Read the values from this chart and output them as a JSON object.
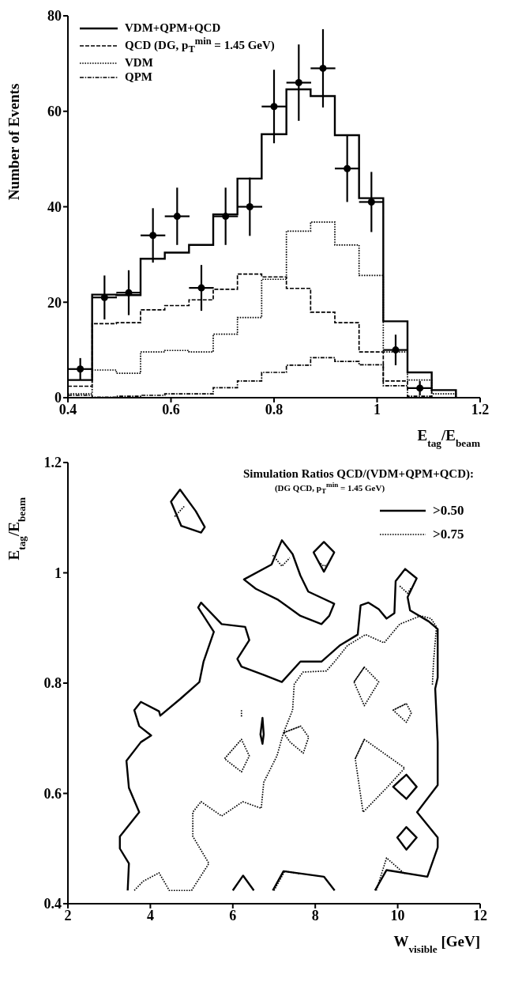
{
  "chart_data": [
    {
      "type": "step",
      "xlabel": "E$_{tag}$/E$_{beam}$",
      "ylabel": "Number of Events",
      "xlim": [
        0.4,
        1.2
      ],
      "xticks": [
        0.4,
        0.6,
        0.8,
        1,
        1.2
      ],
      "ylim": [
        0,
        80
      ],
      "yticks": [
        0,
        20,
        40,
        60,
        80
      ],
      "legend": "top left",
      "x": [
        0.4,
        0.447,
        0.494,
        0.541,
        0.588,
        0.635,
        0.682,
        0.729,
        0.776,
        0.824,
        0.871,
        0.918,
        0.965,
        1.012,
        1.059,
        1.106,
        1.153
      ],
      "series": [
        {
          "name": "VDM+QPM+QCD",
          "color": "#000000",
          "line_style": "solid",
          "values": [
            3.7,
            21.6,
            21.5,
            29.1,
            30.4,
            32,
            38.4,
            45.9,
            55.2,
            64.6,
            63.2,
            55.0,
            41.8,
            16,
            5.3,
            1.6,
            0
          ]
        },
        {
          "name": "QCD (DG, p$_{T}$$^{min}$ = 1.45 GeV)",
          "color": "#000000",
          "line_style": "dashed",
          "values": [
            2.4,
            15.5,
            15.7,
            18.4,
            19.3,
            20.5,
            22.7,
            25.9,
            25.3,
            22.9,
            17.9,
            15.7,
            9.6,
            3.5,
            2,
            0,
            0
          ]
        },
        {
          "name": "VDM",
          "color": "#000000",
          "line_style": "dotted",
          "values": [
            0.8,
            5.8,
            5.1,
            9.6,
            9.9,
            9.6,
            13.3,
            16.8,
            24.8,
            34.9,
            36.8,
            32,
            25.6,
            9.6,
            3.7,
            0.8,
            0
          ]
        },
        {
          "name": "QPM",
          "color": "#000000",
          "line_style": "dashdot",
          "values": [
            0.5,
            0.1,
            0.3,
            0.5,
            0.8,
            0.8,
            2.1,
            3.5,
            5.3,
            6.8,
            8.4,
            7.6,
            6.9,
            2.5,
            0.3,
            0,
            0
          ]
        },
        {
          "type": "scatter",
          "color": "#000000",
          "marker": "circle",
          "x": [
            0.424,
            0.471,
            0.518,
            0.565,
            0.612,
            0.659,
            0.706,
            0.753,
            0.8,
            0.848,
            0.895,
            0.942,
            0.989,
            1.036,
            1.083
          ],
          "values": [
            6,
            21,
            22,
            34,
            38,
            23,
            38,
            40,
            61,
            66,
            69,
            48,
            41,
            10,
            2
          ],
          "errors": [
            2.3,
            4.6,
            4.7,
            5.7,
            6,
            4.8,
            6,
            6.1,
            7.7,
            8,
            8.2,
            7,
            6.3,
            3.2,
            1.5
          ],
          "xerrors": [
            0.024,
            0.024,
            0.024,
            0.024,
            0.024,
            0.024,
            0.024,
            0.024,
            0.024,
            0.024,
            0.024,
            0.024,
            0.024,
            0.024,
            0.024
          ]
        }
      ]
    },
    {
      "type": "line",
      "xlabel": "W$_{visible}$ [GeV]",
      "ylabel": "E$_{tag}$/E$_{beam}$",
      "xlim": [
        2,
        12
      ],
      "xticks": [
        2,
        4,
        6,
        8,
        10,
        12
      ],
      "ylim": [
        0.4,
        1.2
      ],
      "yticks": [
        0.4,
        0.6,
        0.8,
        1,
        1.2
      ],
      "legend": "top right",
      "marker": "none",
      "legend_title": "Simulation Ratios QCD/(VDM+QPM+QCD):",
      "annotations": [
        "(DG QCD, p$_{T}$$^{min}$ = 1.45 GeV)"
      ],
      "series": [
        {
          "name": ">0.50",
          "color": "#000000",
          "line_style": "solid",
          "x": [
            3.45,
            3.48,
            3.26,
            3.26,
            3.73,
            3.48,
            3.42,
            3.77,
            4.02,
            3.73,
            3.61,
            3.77,
            4.21,
            4.24,
            4.72,
            5.19,
            5.29,
            5.54,
            5.16,
            5.23,
            5.73,
            6.3,
            6.4,
            6.11,
            6.21,
            6.75,
            7.19,
            7.64,
            8.15,
            8.59,
            9.03,
            9.1,
            9.29,
            9.54,
            9.73,
            9.92,
            9.95,
            10.18,
            10.46,
            10.24,
            10.3,
            10.75,
            10.97,
            10.97,
            10.91,
            10.97,
            10.97,
            10.47,
            10.97,
            10.97,
            10.72,
            9.73,
            9.45
          ],
          "values": [
            0.424,
            0.473,
            0.5,
            0.522,
            0.566,
            0.61,
            0.659,
            0.693,
            0.705,
            0.722,
            0.751,
            0.766,
            0.749,
            0.741,
            0.771,
            0.802,
            0.839,
            0.893,
            0.937,
            0.946,
            0.907,
            0.902,
            0.878,
            0.844,
            0.83,
            0.815,
            0.802,
            0.839,
            0.839,
            0.868,
            0.888,
            0.941,
            0.946,
            0.934,
            0.917,
            0.927,
            0.985,
            1.007,
            0.99,
            0.956,
            0.932,
            0.912,
            0.898,
            0.81,
            0.79,
            0.693,
            0.615,
            0.566,
            0.52,
            0.502,
            0.449,
            0.461,
            0.424
          ]
        },
        {
          "color": "#000000",
          "line_style": "solid",
          "x": [
            6.0,
            6.25,
            6.51
          ],
          "values": [
            0.424,
            0.451,
            0.424
          ]
        },
        {
          "color": "#000000",
          "line_style": "solid",
          "x": [
            6.97,
            7.23,
            8.21,
            8.47
          ],
          "values": [
            0.424,
            0.459,
            0.449,
            0.424
          ]
        },
        {
          "color": "#000000",
          "line_style": "solid",
          "x": [
            9.99,
            10.21,
            10.46,
            10.21,
            9.99,
            10.21
          ],
          "values": [
            0.52,
            0.539,
            0.52,
            0.498,
            0.52,
            0.539
          ]
        },
        {
          "color": "#000000",
          "line_style": "solid",
          "x": [
            9.89,
            10.21,
            10.46,
            10.21,
            9.89,
            10.21
          ],
          "values": [
            0.612,
            0.634,
            0.612,
            0.59,
            0.612,
            0.634
          ]
        },
        {
          "color": "#000000",
          "line_style": "solid",
          "x": [
            6.72,
            6.75,
            6.72,
            6.67,
            6.72,
            6.75
          ],
          "values": [
            0.737,
            0.707,
            0.69,
            0.707,
            0.737,
            0.707
          ]
        },
        {
          "color": "#000000",
          "line_style": "solid",
          "x": [
            4.72,
            5.1,
            5.32,
            5.23,
            4.75,
            4.5,
            4.72,
            5.1
          ],
          "values": [
            1.151,
            1.112,
            1.083,
            1.073,
            1.085,
            1.129,
            1.151,
            1.112
          ]
        },
        {
          "color": "#000000",
          "line_style": "solid",
          "x": [
            6.27,
            6.94,
            7.19,
            7.45,
            7.64,
            7.83,
            8.46,
            8.34,
            8.15,
            7.64,
            7.1,
            6.56,
            6.27,
            6.94
          ],
          "values": [
            0.988,
            1.015,
            1.059,
            1.034,
            0.995,
            0.966,
            0.944,
            0.922,
            0.907,
            0.922,
            0.951,
            0.971,
            0.988,
            1.015
          ]
        },
        {
          "color": "#000000",
          "line_style": "solid",
          "x": [
            7.96,
            8.21,
            8.46,
            8.21,
            7.96,
            8.21
          ],
          "values": [
            1.037,
            1.056,
            1.037,
            1.002,
            1.037,
            1.056
          ]
        },
        {
          "name": ">0.75",
          "color": "#000000",
          "line_style": "dotted",
          "x": [
            3.61,
            3.83,
            4.21,
            4.46,
            4.75,
            5.0,
            5.42,
            5.03,
            5.03,
            5.23,
            5.73,
            6.24,
            6.69,
            6.75,
            7.07,
            7.23,
            7.45,
            7.49,
            7.7,
            8.27,
            8.47,
            8.78,
            9.22,
            9.67,
            10.05,
            10.56,
            10.81,
            10.94,
            10.87,
            10.84
          ],
          "values": [
            0.424,
            0.441,
            0.456,
            0.424,
            0.424,
            0.424,
            0.473,
            0.522,
            0.566,
            0.585,
            0.559,
            0.585,
            0.573,
            0.62,
            0.668,
            0.71,
            0.751,
            0.798,
            0.82,
            0.822,
            0.839,
            0.868,
            0.888,
            0.873,
            0.907,
            0.922,
            0.917,
            0.902,
            0.839,
            0.795
          ]
        },
        {
          "color": "#000000",
          "line_style": "dotted",
          "x": [
            8.94,
            9.19,
            9.54,
            9.19,
            8.94,
            9.19
          ],
          "values": [
            0.802,
            0.829,
            0.802,
            0.759,
            0.802,
            0.829
          ]
        },
        {
          "color": "#000000",
          "line_style": "dotted",
          "x": [
            9.89,
            10.21,
            10.33,
            10.21,
            9.89,
            10.21
          ],
          "values": [
            0.751,
            0.763,
            0.746,
            0.729,
            0.751,
            0.763
          ]
        },
        {
          "color": "#000000",
          "line_style": "dotted",
          "x": [
            9.19,
            8.97,
            9.16,
            9.73,
            10.17,
            9.19,
            8.97
          ],
          "values": [
            0.698,
            0.663,
            0.566,
            0.61,
            0.646,
            0.698,
            0.663
          ]
        },
        {
          "color": "#000000",
          "line_style": "dotted",
          "x": [
            5.8,
            6.21,
            6.4,
            6.21,
            5.8,
            6.21
          ],
          "values": [
            0.663,
            0.698,
            0.668,
            0.639,
            0.663,
            0.698
          ]
        },
        {
          "color": "#000000",
          "line_style": "dotted",
          "x": [
            7.23,
            7.65,
            7.84,
            7.71,
            7.39,
            7.23,
            7.65
          ],
          "values": [
            0.71,
            0.722,
            0.702,
            0.673,
            0.693,
            0.71,
            0.722
          ]
        },
        {
          "color": "#000000",
          "line_style": "dotted",
          "x": [
            6.21,
            6.21
          ],
          "values": [
            0.751,
            0.739
          ]
        },
        {
          "color": "#000000",
          "line_style": "dotted",
          "x": [
            7.0,
            7.26,
            7.64
          ],
          "values": [
            0.424,
            0.459,
            0.454
          ]
        },
        {
          "color": "#000000",
          "line_style": "dotted",
          "x": [
            9.48,
            9.73,
            10.17
          ],
          "values": [
            0.424,
            0.483,
            0.454
          ]
        },
        {
          "color": "#000000",
          "line_style": "dotted",
          "x": [
            6.97,
            7.19,
            7.38
          ],
          "values": [
            1.032,
            1.012,
            1.027
          ]
        },
        {
          "color": "#000000",
          "line_style": "dotted",
          "x": [
            8.08,
            8.21,
            8.34
          ],
          "values": [
            1.02,
            1.012,
            1.017
          ]
        },
        {
          "color": "#000000",
          "line_style": "dotted",
          "x": [
            10.05,
            10.24,
            10.33
          ],
          "values": [
            0.976,
            0.963,
            0.973
          ]
        },
        {
          "color": "#000000",
          "line_style": "dotted",
          "x": [
            4.59,
            4.84
          ],
          "values": [
            1.102,
            1.122
          ]
        }
      ]
    }
  ]
}
